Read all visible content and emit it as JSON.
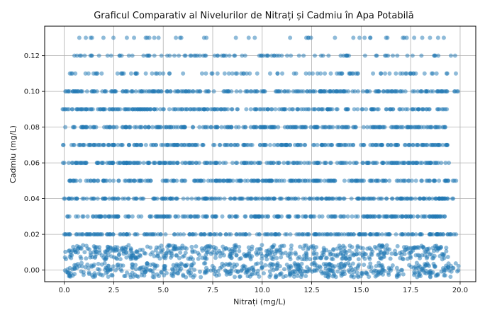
{
  "chart_data": {
    "type": "scatter",
    "title": "Graficul Comparativ al Nivelurilor de Nitrați și Cadmiu în Apa Potabilă",
    "xlabel": "Nitrați (mg/L)",
    "ylabel": "Cadmiu (mg/L)",
    "xlim": [
      -0.99,
      20.79
    ],
    "ylim": [
      -0.0065,
      0.1365
    ],
    "x_ticks": [
      0.0,
      2.5,
      5.0,
      7.5,
      10.0,
      12.5,
      15.0,
      17.5,
      20.0
    ],
    "x_tick_labels": [
      "0.0",
      "2.5",
      "5.0",
      "7.5",
      "10.0",
      "12.5",
      "15.0",
      "17.5",
      "20.0"
    ],
    "y_ticks": [
      0.0,
      0.02,
      0.04,
      0.06,
      0.08,
      0.1,
      0.12
    ],
    "y_tick_labels": [
      "0.00",
      "0.02",
      "0.04",
      "0.06",
      "0.08",
      "0.10",
      "0.12"
    ],
    "grid": true,
    "marker_color": "#1f77b4",
    "marker_alpha": 0.5,
    "bands": [
      {
        "y": 0.0,
        "x_min": 0.0,
        "x_max": 20.0,
        "density": "dense"
      },
      {
        "y": 0.01,
        "x_min": 0.0,
        "x_max": 19.4,
        "density": "dense"
      },
      {
        "y": 0.02,
        "x_min": 0.0,
        "x_max": 19.8,
        "density": "dense"
      },
      {
        "y": 0.03,
        "x_min": 0.1,
        "x_max": 19.3,
        "density": "dense"
      },
      {
        "y": 0.04,
        "x_min": -0.1,
        "x_max": 19.8,
        "density": "dense"
      },
      {
        "y": 0.05,
        "x_min": 0.2,
        "x_max": 19.8,
        "density": "dense"
      },
      {
        "y": 0.06,
        "x_min": -0.1,
        "x_max": 19.5,
        "density": "dense"
      },
      {
        "y": 0.07,
        "x_min": -0.1,
        "x_max": 19.4,
        "density": "dense"
      },
      {
        "y": 0.08,
        "x_min": -0.05,
        "x_max": 19.3,
        "density": "dense"
      },
      {
        "y": 0.09,
        "x_min": -0.1,
        "x_max": 19.4,
        "density": "dense"
      },
      {
        "y": 0.1,
        "x_min": 0.0,
        "x_max": 19.9,
        "density": "dense"
      },
      {
        "y": 0.11,
        "x_min": 0.2,
        "x_max": 19.8,
        "density": "medium"
      },
      {
        "y": 0.12,
        "x_min": 0.5,
        "x_max": 19.8,
        "density": "medium"
      },
      {
        "y": 0.13,
        "x_min": 0.7,
        "x_max": 19.8,
        "density": "sparse"
      }
    ]
  }
}
